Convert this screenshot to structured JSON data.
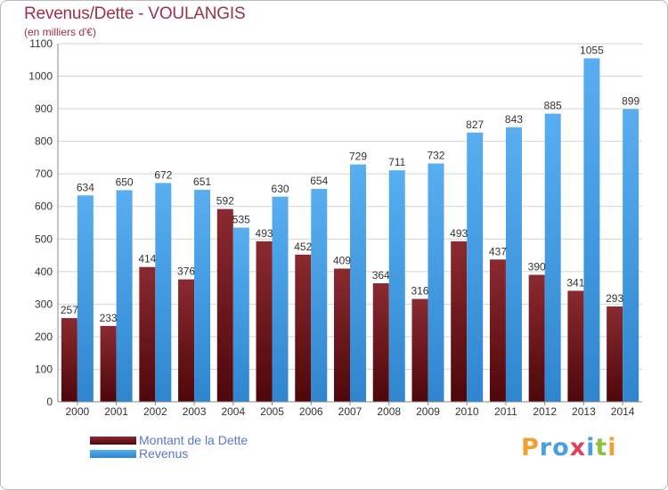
{
  "header": {
    "title": "Revenus/Dette - VOULANGIS",
    "subtitle": "(en milliers d'€)"
  },
  "chart_data": {
    "type": "bar",
    "title": "Revenus/Dette - VOULANGIS",
    "subtitle": "(en milliers d'€)",
    "categories": [
      "2000",
      "2001",
      "2002",
      "2003",
      "2004",
      "2005",
      "2006",
      "2007",
      "2008",
      "2009",
      "2010",
      "2011",
      "2012",
      "2013",
      "2014"
    ],
    "series": [
      {
        "name": "Montant de la Dette",
        "color": "#6b1116",
        "values": [
          257,
          233,
          414,
          376,
          592,
          493,
          452,
          409,
          364,
          316,
          493,
          437,
          390,
          341,
          293
        ]
      },
      {
        "name": "Revenus",
        "color": "#4a9fe0",
        "values": [
          634,
          650,
          672,
          651,
          535,
          630,
          654,
          729,
          711,
          732,
          827,
          843,
          885,
          1055,
          899
        ]
      }
    ],
    "ylim": [
      0,
      1100
    ],
    "yticks": [
      0,
      100,
      200,
      300,
      400,
      500,
      600,
      700,
      800,
      900,
      1000,
      1100
    ],
    "grid": true,
    "legend_position": "bottom-left"
  },
  "legend": {
    "items": [
      {
        "label": "Montant de la Dette",
        "color": "#6b1116"
      },
      {
        "label": "Revenus",
        "color": "#4a9fe0"
      }
    ]
  },
  "logo": {
    "text": "Proxiti",
    "letters": [
      {
        "ch": "P",
        "color": "#f0a030"
      },
      {
        "ch": "r",
        "color": "#4a9fe0"
      },
      {
        "ch": "o",
        "color": "#4a9fe0"
      },
      {
        "ch": "x",
        "color": "#e04060"
      },
      {
        "ch": "i",
        "color": "#4a9fe0"
      },
      {
        "ch": "t",
        "color": "#90c040"
      },
      {
        "ch": "i",
        "color": "#f0a030"
      }
    ]
  }
}
